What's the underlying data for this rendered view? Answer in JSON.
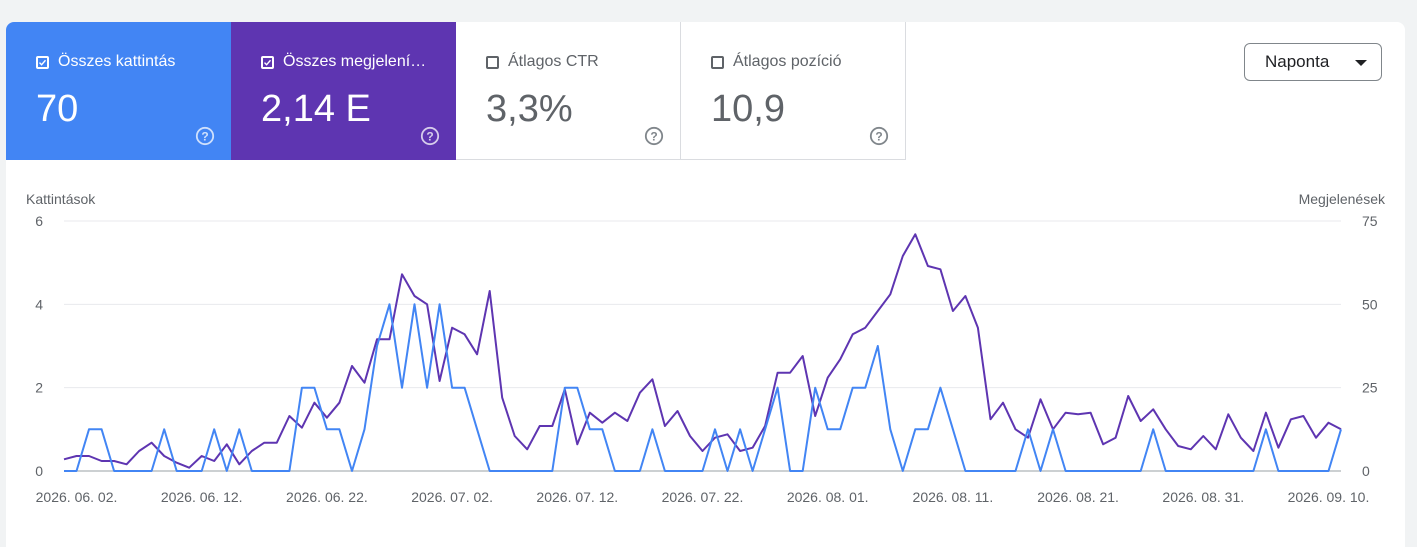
{
  "metrics": [
    {
      "label": "Összes kattintás",
      "value": "70",
      "checked": true
    },
    {
      "label": "Összes megjelení…",
      "value": "2,14 E",
      "checked": true
    },
    {
      "label": "Átlagos CTR",
      "value": "3,3%",
      "checked": false
    },
    {
      "label": "Átlagos pozíció",
      "value": "10,9",
      "checked": false
    }
  ],
  "dropdown": {
    "label": "Naponta"
  },
  "colors": {
    "clicks": "#4285f4",
    "impressions": "#5e35b1",
    "grid": "#e8eaed"
  },
  "chart_data": {
    "type": "line",
    "ylabel_left": "Kattintások",
    "ylabel_right": "Megjelenések",
    "ylim_left": [
      0,
      6
    ],
    "ylim_right": [
      0,
      75
    ],
    "yticks_left": [
      "0",
      "2",
      "4",
      "6"
    ],
    "yticks_right": [
      "0",
      "25",
      "50",
      "75"
    ],
    "xtick_labels": [
      "2026. 06. 02.",
      "2026. 06. 12.",
      "2026. 06. 22.",
      "2026. 07. 02.",
      "2026. 07. 12.",
      "2026. 07. 22.",
      "2026. 08. 01.",
      "2026. 08. 11.",
      "2026. 08. 21.",
      "2026. 08. 31.",
      "2026. 09. 10."
    ],
    "xtick_index": [
      1,
      11,
      21,
      31,
      41,
      51,
      61,
      71,
      81,
      91,
      101
    ],
    "series": [
      {
        "name": "Összes kattintás",
        "axis": "left",
        "color": "#4285f4",
        "values": [
          0,
          0,
          1,
          1,
          0,
          0,
          0,
          0,
          1,
          0,
          0,
          0,
          1,
          0,
          1,
          0,
          0,
          0,
          0,
          2,
          2,
          1,
          1,
          0,
          1,
          3,
          4,
          2,
          4,
          2,
          4,
          2,
          2,
          1,
          0,
          0,
          0,
          0,
          0,
          0,
          2,
          2,
          1,
          1,
          0,
          0,
          0,
          1,
          0,
          0,
          0,
          0,
          1,
          0,
          1,
          0,
          1,
          2,
          0,
          0,
          2,
          1,
          1,
          2,
          2,
          3,
          1,
          0,
          1,
          1,
          2,
          1,
          0,
          0,
          0,
          0,
          0,
          1,
          0,
          1,
          0,
          0,
          0,
          0,
          0,
          0,
          0,
          1,
          0,
          0,
          0,
          0,
          0,
          0,
          0,
          0,
          1,
          0,
          0,
          0,
          0,
          0,
          1
        ]
      },
      {
        "name": "Összes megjelení…",
        "axis": "right",
        "color": "#5e35b1",
        "values": [
          3.5,
          4.5,
          4.5,
          3,
          3,
          2,
          6,
          8.5,
          4.5,
          2.5,
          1,
          4.5,
          3,
          8,
          2,
          6,
          8.5,
          8.5,
          16.5,
          13,
          20.5,
          16,
          20.5,
          31.5,
          26.5,
          39.5,
          39.5,
          59,
          52.5,
          50,
          27,
          43,
          41,
          35,
          54,
          22,
          10.5,
          6.5,
          13.5,
          13.5,
          24.5,
          8,
          17.5,
          14.5,
          17.5,
          15,
          23.5,
          27.5,
          13.5,
          18,
          10.5,
          6,
          10,
          11,
          6,
          7,
          13.5,
          29.5,
          29.5,
          34.5,
          16.5,
          28,
          33.5,
          41,
          43,
          48,
          53,
          64.5,
          71,
          61.5,
          60.5,
          48,
          52.5,
          43,
          15.5,
          20.5,
          12.5,
          10,
          21.5,
          12.5,
          17.5,
          17,
          17.5,
          8,
          10,
          22.5,
          15,
          18.5,
          12.5,
          7.5,
          6.5,
          10.5,
          6.5,
          17,
          10,
          6,
          17.5,
          7,
          15.5,
          16.5,
          10,
          14.5,
          12.5
        ]
      }
    ]
  }
}
